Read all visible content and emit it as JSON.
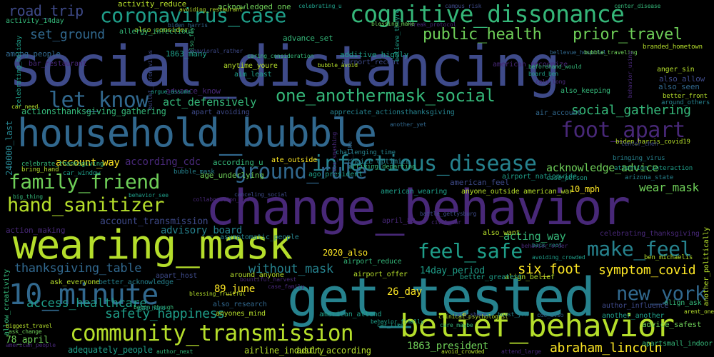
{
  "palette": {
    "background": "#000000",
    "dark_purple": "#482878",
    "blue_purple": "#3e4a89",
    "slate_blue": "#31688e",
    "teal_blue": "#26828e",
    "teal": "#1f9e89",
    "green": "#35b779",
    "light_green": "#6ece58",
    "yellow_green": "#b5de2b",
    "yellow": "#fde725"
  },
  "words": [
    "social_distancing",
    "household_bubble",
    "change_behavior",
    "get_tested",
    "wearing_mask",
    "cognitive_dissonance",
    "coronavirus_case",
    "belief_behavior",
    "community_transmission",
    "10_minute",
    "infectious_disease",
    "hand_sanitizer",
    "family_friend",
    "ground_rule",
    "public_health",
    "prior_travel",
    "let_know",
    "one_anothermask_social",
    "foot_apart",
    "make_feel",
    "feel_safe",
    "new_york",
    "road_trip",
    "set_ground",
    "social_gathering",
    "safety_happiness",
    "thanksgiving_table",
    "symptom_covid",
    "six_foot",
    "access_healthcare",
    "abraham_lincoln",
    "without_mask",
    "wear_mask",
    "acknowledge_advice",
    "act_defensively",
    "acting_way",
    "account_way",
    "according_cdc",
    "advisory_board",
    "account_transmission",
    "26_day",
    "89_june",
    "14day_period",
    "1863_president",
    "airline_industry",
    "adult_according",
    "78_april",
    "adequately_people",
    "2020_also",
    "10_mph",
    "action_making",
    "activity_reduce",
    "activity_14day",
    "acknowledged_one",
    "advance_set",
    "additive_highly",
    "airport_recent",
    "american_recognize",
    "age_underlying",
    "according_u",
    "ago_president",
    "airport_nationwide",
    "american_feel",
    "ate_outside",
    "american_wearing",
    "anyone_outside",
    "also_allow",
    "anger_sin",
    "also_seen",
    "also_keeping",
    "also_want",
    "1863_many",
    "advance_know",
    "aim_least",
    "anytime_youre",
    "among_people",
    "also_consider",
    "allergy_infectious",
    "bar_restaurant",
    "airport_reduce",
    "airport_offer",
    "also_research",
    "american_attend",
    "align_belief",
    "align_ask",
    "around_anyone",
    "ask_everyone",
    "advice_safest",
    "apartsmall_indoor",
    "another_another",
    "author_influence",
    "american_war",
    "april_89",
    "240000_last",
    "allow_creativity",
    "celebrating_holiday",
    "apart_host",
    "better_greatest",
    "better_acknowledge",
    "anyones_mind",
    "air_account",
    "asymptomatic_people",
    "actionsthanksgiving_gathering",
    "appreciate_actionsthanksgiving",
    "apart_avoiding",
    "celebrating_thanksgiving",
    "another_politically",
    "also_fly",
    "celebrating_u",
    "campus_risk",
    "center_disease",
    "celebrate_thanksgiving",
    "bring_hand",
    "car_window",
    "big_thing",
    "bubble_mask",
    "behavior_see",
    "canceling_social",
    "collaboration_nyc",
    "choice_optimize",
    "arriving_departing",
    "challenging_time",
    "bit_like",
    "case_smashing",
    "case_person",
    "arizona_state",
    "attention_interaction",
    "bringing_virus",
    "biden_harris_covid19",
    "avoiding_crowded",
    "ben_michaelis",
    "battle_gettysburg",
    "back_root",
    "behavior_order",
    "beforehand_would",
    "board_ben",
    "bubble_avoid",
    "bellevue_hospital",
    "branded_hometown",
    "around_others",
    "better_front",
    "behavior_finally",
    "begun_though",
    "blessing_fruitful",
    "bountiful_harvest",
    "case_family",
    "clinical_psychologist",
    "care_shame",
    "boost_jfk",
    "cdc_also",
    "car_like",
    "care_maybe",
    "biggest_travel",
    "ask_change",
    "american_people",
    "author_next",
    "avoid_crowded",
    "attend_large",
    "arent_one",
    "bag_hand",
    "break_protocol",
    "civil_war",
    "car_need",
    "another_yet",
    "believe_theyre",
    "bubble_traveling",
    "behavior_using",
    "caring_consideration",
    "behavioral_rather",
    "argue_assume",
    "bullet_coronavirus",
    "avoiding_restaurant",
    "calm_long",
    "center_chen",
    "blessing_make",
    "biden_harris",
    "anyone_care",
    "ciaddini_regent",
    "celebrating_begin"
  ]
}
